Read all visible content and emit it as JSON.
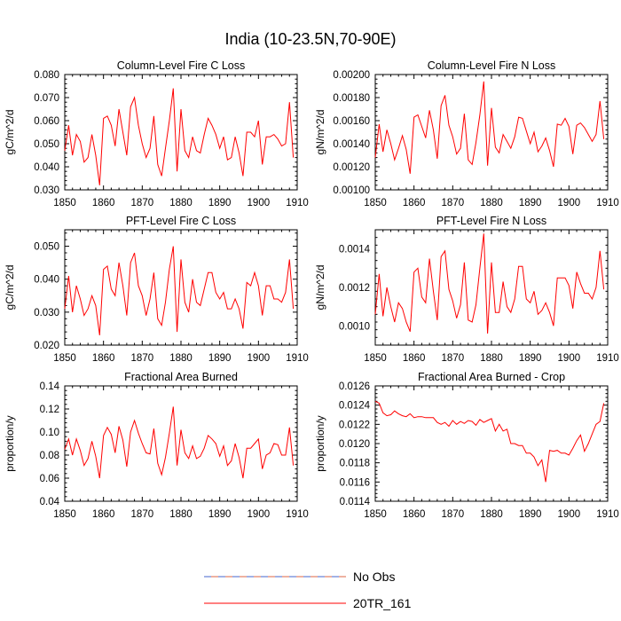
{
  "figure": {
    "title": "India (10-23.5N,70-90E)"
  },
  "legend": {
    "entries": [
      {
        "label": "No Obs",
        "style": "dashed",
        "color": "#4466cc",
        "alt_color": "#dd6644"
      },
      {
        "label": "20TR_161",
        "style": "solid",
        "color": "#ff0000"
      }
    ]
  },
  "chart_data": [
    {
      "type": "line",
      "title": "Column-Level Fire C Loss",
      "xlabel": "",
      "ylabel": "gC/m^2/d",
      "xlim": [
        1850,
        1910
      ],
      "ylim": [
        0.03,
        0.08
      ],
      "xticks": [
        "1850",
        "1860",
        "1870",
        "1880",
        "1890",
        "1900",
        "1910"
      ],
      "yticks": [
        "0.030",
        "0.040",
        "0.050",
        "0.060",
        "0.070",
        "0.080"
      ],
      "series": [
        {
          "name": "20TR_161",
          "color": "#ff0000",
          "x": [
            1850,
            1851,
            1852,
            1853,
            1854,
            1855,
            1856,
            1857,
            1858,
            1859,
            1860,
            1861,
            1862,
            1863,
            1864,
            1865,
            1866,
            1867,
            1868,
            1869,
            1870,
            1871,
            1872,
            1873,
            1874,
            1875,
            1876,
            1877,
            1878,
            1879,
            1880,
            1881,
            1882,
            1883,
            1884,
            1885,
            1886,
            1887,
            1888,
            1889,
            1890,
            1891,
            1892,
            1893,
            1894,
            1895,
            1896,
            1897,
            1898,
            1899,
            1900,
            1901,
            1902,
            1903,
            1904,
            1905,
            1906,
            1907,
            1908,
            1909
          ],
          "values": [
            0.047,
            0.058,
            0.045,
            0.054,
            0.051,
            0.042,
            0.044,
            0.054,
            0.045,
            0.032,
            0.061,
            0.062,
            0.058,
            0.049,
            0.065,
            0.055,
            0.045,
            0.066,
            0.07,
            0.058,
            0.05,
            0.044,
            0.048,
            0.062,
            0.041,
            0.036,
            0.048,
            0.06,
            0.074,
            0.038,
            0.065,
            0.047,
            0.044,
            0.053,
            0.047,
            0.046,
            0.054,
            0.061,
            0.058,
            0.054,
            0.048,
            0.053,
            0.043,
            0.044,
            0.053,
            0.046,
            0.036,
            0.055,
            0.055,
            0.053,
            0.06,
            0.041,
            0.053,
            0.053,
            0.054,
            0.052,
            0.049,
            0.05,
            0.068,
            0.044
          ]
        }
      ]
    },
    {
      "type": "line",
      "title": "Column-Level Fire N Loss",
      "xlabel": "",
      "ylabel": "gN/m^2/d",
      "xlim": [
        1850,
        1910
      ],
      "ylim": [
        0.001,
        0.002
      ],
      "xticks": [
        "1850",
        "1860",
        "1870",
        "1880",
        "1890",
        "1900",
        "1910"
      ],
      "yticks": [
        "0.00100",
        "0.00120",
        "0.00140",
        "0.00160",
        "0.00180",
        "0.00200"
      ],
      "series": [
        {
          "name": "20TR_161",
          "color": "#ff0000",
          "x": [
            1850,
            1851,
            1852,
            1853,
            1854,
            1855,
            1856,
            1857,
            1858,
            1859,
            1860,
            1861,
            1862,
            1863,
            1864,
            1865,
            1866,
            1867,
            1868,
            1869,
            1870,
            1871,
            1872,
            1873,
            1874,
            1875,
            1876,
            1877,
            1878,
            1879,
            1880,
            1881,
            1882,
            1883,
            1884,
            1885,
            1886,
            1887,
            1888,
            1889,
            1890,
            1891,
            1892,
            1893,
            1894,
            1895,
            1896,
            1897,
            1898,
            1899,
            1900,
            1901,
            1902,
            1903,
            1904,
            1905,
            1906,
            1907,
            1908,
            1909
          ],
          "values": [
            0.00128,
            0.00157,
            0.00133,
            0.00152,
            0.0014,
            0.00126,
            0.00136,
            0.00147,
            0.00135,
            0.00114,
            0.00163,
            0.00165,
            0.00155,
            0.00145,
            0.00169,
            0.00152,
            0.00127,
            0.00173,
            0.00182,
            0.00156,
            0.00146,
            0.00131,
            0.00136,
            0.00166,
            0.00126,
            0.00122,
            0.00141,
            0.00165,
            0.00194,
            0.00121,
            0.00171,
            0.00137,
            0.00132,
            0.00148,
            0.00142,
            0.00136,
            0.00146,
            0.00163,
            0.00162,
            0.00151,
            0.0014,
            0.0015,
            0.00133,
            0.00138,
            0.00145,
            0.00134,
            0.0012,
            0.00157,
            0.00156,
            0.00162,
            0.00155,
            0.00131,
            0.00156,
            0.00158,
            0.00154,
            0.00148,
            0.00142,
            0.00148,
            0.00177,
            0.00144
          ]
        }
      ]
    },
    {
      "type": "line",
      "title": "PFT-Level Fire C Loss",
      "xlabel": "",
      "ylabel": "gC/m^2/d",
      "xlim": [
        1850,
        1910
      ],
      "ylim": [
        0.02,
        0.055
      ],
      "xticks": [
        "1850",
        "1860",
        "1870",
        "1880",
        "1890",
        "1900",
        "1910"
      ],
      "yticks": [
        "0.020",
        "0.030",
        "0.040",
        "0.050"
      ],
      "series": [
        {
          "name": "20TR_161",
          "color": "#ff0000",
          "x": [
            1850,
            1851,
            1852,
            1853,
            1854,
            1855,
            1856,
            1857,
            1858,
            1859,
            1860,
            1861,
            1862,
            1863,
            1864,
            1865,
            1866,
            1867,
            1868,
            1869,
            1870,
            1871,
            1872,
            1873,
            1874,
            1875,
            1876,
            1877,
            1878,
            1879,
            1880,
            1881,
            1882,
            1883,
            1884,
            1885,
            1886,
            1887,
            1888,
            1889,
            1890,
            1891,
            1892,
            1893,
            1894,
            1895,
            1896,
            1897,
            1898,
            1899,
            1900,
            1901,
            1902,
            1903,
            1904,
            1905,
            1906,
            1907,
            1908,
            1909
          ],
          "values": [
            0.031,
            0.041,
            0.03,
            0.038,
            0.034,
            0.029,
            0.031,
            0.035,
            0.032,
            0.023,
            0.043,
            0.044,
            0.037,
            0.035,
            0.045,
            0.038,
            0.029,
            0.045,
            0.048,
            0.038,
            0.035,
            0.029,
            0.034,
            0.042,
            0.028,
            0.026,
            0.033,
            0.043,
            0.05,
            0.024,
            0.046,
            0.033,
            0.03,
            0.04,
            0.033,
            0.032,
            0.037,
            0.042,
            0.042,
            0.036,
            0.034,
            0.036,
            0.031,
            0.031,
            0.034,
            0.031,
            0.025,
            0.039,
            0.038,
            0.042,
            0.038,
            0.029,
            0.038,
            0.038,
            0.034,
            0.034,
            0.033,
            0.036,
            0.046,
            0.031
          ]
        }
      ]
    },
    {
      "type": "line",
      "title": "PFT-Level Fire N Loss",
      "xlabel": "",
      "ylabel": "gN/m^2/d",
      "xlim": [
        1850,
        1910
      ],
      "ylim": [
        0.0009,
        0.0015
      ],
      "xticks": [
        "1850",
        "1860",
        "1870",
        "1880",
        "1890",
        "1900",
        "1910"
      ],
      "yticks": [
        "0.0010",
        "0.0012",
        "0.0014"
      ],
      "series": [
        {
          "name": "20TR_161",
          "color": "#ff0000",
          "x": [
            1850,
            1851,
            1852,
            1853,
            1854,
            1855,
            1856,
            1857,
            1858,
            1859,
            1860,
            1861,
            1862,
            1863,
            1864,
            1865,
            1866,
            1867,
            1868,
            1869,
            1870,
            1871,
            1872,
            1873,
            1874,
            1875,
            1876,
            1877,
            1878,
            1879,
            1880,
            1881,
            1882,
            1883,
            1884,
            1885,
            1886,
            1887,
            1888,
            1889,
            1890,
            1891,
            1892,
            1893,
            1894,
            1895,
            1896,
            1897,
            1898,
            1899,
            1900,
            1901,
            1902,
            1903,
            1904,
            1905,
            1906,
            1907,
            1908,
            1909
          ],
          "values": [
            0.00106,
            0.00127,
            0.00105,
            0.0012,
            0.0011,
            0.00102,
            0.00112,
            0.00109,
            0.00102,
            0.00097,
            0.00128,
            0.0013,
            0.00115,
            0.00112,
            0.00135,
            0.00118,
            0.00103,
            0.00136,
            0.00139,
            0.00119,
            0.00113,
            0.00104,
            0.00111,
            0.00133,
            0.00103,
            0.00102,
            0.00111,
            0.0013,
            0.00148,
            0.00096,
            0.00133,
            0.00107,
            0.00107,
            0.00123,
            0.0011,
            0.00107,
            0.00114,
            0.00131,
            0.00131,
            0.00114,
            0.00112,
            0.00118,
            0.00106,
            0.00108,
            0.00112,
            0.00107,
            0.001,
            0.00125,
            0.00125,
            0.00125,
            0.00121,
            0.00109,
            0.00128,
            0.00122,
            0.00117,
            0.00117,
            0.00114,
            0.0012,
            0.00139,
            0.00119
          ]
        }
      ]
    },
    {
      "type": "line",
      "title": "Fractional Area Burned",
      "xlabel": "",
      "ylabel": "proportion/y",
      "xlim": [
        1850,
        1910
      ],
      "ylim": [
        0.04,
        0.14
      ],
      "xticks": [
        "1850",
        "1860",
        "1870",
        "1880",
        "1890",
        "1900",
        "1910"
      ],
      "yticks": [
        "0.04",
        "0.06",
        "0.08",
        "0.10",
        "0.12",
        "0.14"
      ],
      "series": [
        {
          "name": "20TR_161",
          "color": "#ff0000",
          "x": [
            1850,
            1851,
            1852,
            1853,
            1854,
            1855,
            1856,
            1857,
            1858,
            1859,
            1860,
            1861,
            1862,
            1863,
            1864,
            1865,
            1866,
            1867,
            1868,
            1869,
            1870,
            1871,
            1872,
            1873,
            1874,
            1875,
            1876,
            1877,
            1878,
            1879,
            1880,
            1881,
            1882,
            1883,
            1884,
            1885,
            1886,
            1887,
            1888,
            1889,
            1890,
            1891,
            1892,
            1893,
            1894,
            1895,
            1896,
            1897,
            1898,
            1899,
            1900,
            1901,
            1902,
            1903,
            1904,
            1905,
            1906,
            1907,
            1908,
            1909
          ],
          "values": [
            0.085,
            0.094,
            0.08,
            0.094,
            0.084,
            0.071,
            0.077,
            0.092,
            0.079,
            0.06,
            0.097,
            0.104,
            0.098,
            0.082,
            0.105,
            0.093,
            0.07,
            0.1,
            0.11,
            0.099,
            0.09,
            0.082,
            0.081,
            0.103,
            0.073,
            0.063,
            0.078,
            0.099,
            0.122,
            0.071,
            0.102,
            0.082,
            0.077,
            0.088,
            0.077,
            0.079,
            0.086,
            0.097,
            0.094,
            0.09,
            0.079,
            0.088,
            0.071,
            0.075,
            0.09,
            0.078,
            0.06,
            0.086,
            0.086,
            0.09,
            0.094,
            0.068,
            0.08,
            0.082,
            0.09,
            0.089,
            0.08,
            0.08,
            0.104,
            0.071
          ]
        }
      ]
    },
    {
      "type": "line",
      "title": "Fractional Area Burned - Crop",
      "xlabel": "",
      "ylabel": "proportion/y",
      "xlim": [
        1850,
        1910
      ],
      "ylim": [
        0.0114,
        0.0126
      ],
      "xticks": [
        "1850",
        "1860",
        "1870",
        "1880",
        "1890",
        "1900",
        "1910"
      ],
      "yticks": [
        "0.0114",
        "0.0116",
        "0.0118",
        "0.0120",
        "0.0122",
        "0.0124",
        "0.0126"
      ],
      "series": [
        {
          "name": "20TR_161",
          "color": "#ff0000",
          "x": [
            1850,
            1851,
            1852,
            1853,
            1854,
            1855,
            1856,
            1857,
            1858,
            1859,
            1860,
            1861,
            1862,
            1863,
            1864,
            1865,
            1866,
            1867,
            1868,
            1869,
            1870,
            1871,
            1872,
            1873,
            1874,
            1875,
            1876,
            1877,
            1878,
            1879,
            1880,
            1881,
            1882,
            1883,
            1884,
            1885,
            1886,
            1887,
            1888,
            1889,
            1890,
            1891,
            1892,
            1893,
            1894,
            1895,
            1896,
            1897,
            1898,
            1899,
            1900,
            1901,
            1902,
            1903,
            1904,
            1905,
            1906,
            1907,
            1908,
            1909
          ],
          "values": [
            0.01244,
            0.01242,
            0.01232,
            0.01229,
            0.0123,
            0.01234,
            0.01231,
            0.01229,
            0.01228,
            0.01231,
            0.01227,
            0.01228,
            0.01228,
            0.01227,
            0.01227,
            0.01227,
            0.01222,
            0.0122,
            0.01222,
            0.01218,
            0.01224,
            0.0122,
            0.01223,
            0.01221,
            0.01224,
            0.01223,
            0.01219,
            0.01225,
            0.01222,
            0.01224,
            0.01226,
            0.01213,
            0.0122,
            0.01213,
            0.01215,
            0.012,
            0.012,
            0.01198,
            0.01198,
            0.0119,
            0.0119,
            0.01186,
            0.01177,
            0.01183,
            0.0116,
            0.01193,
            0.01192,
            0.01193,
            0.0119,
            0.0119,
            0.01188,
            0.01195,
            0.01203,
            0.01209,
            0.01192,
            0.012,
            0.0121,
            0.0122,
            0.01223,
            0.01242
          ]
        }
      ]
    }
  ]
}
